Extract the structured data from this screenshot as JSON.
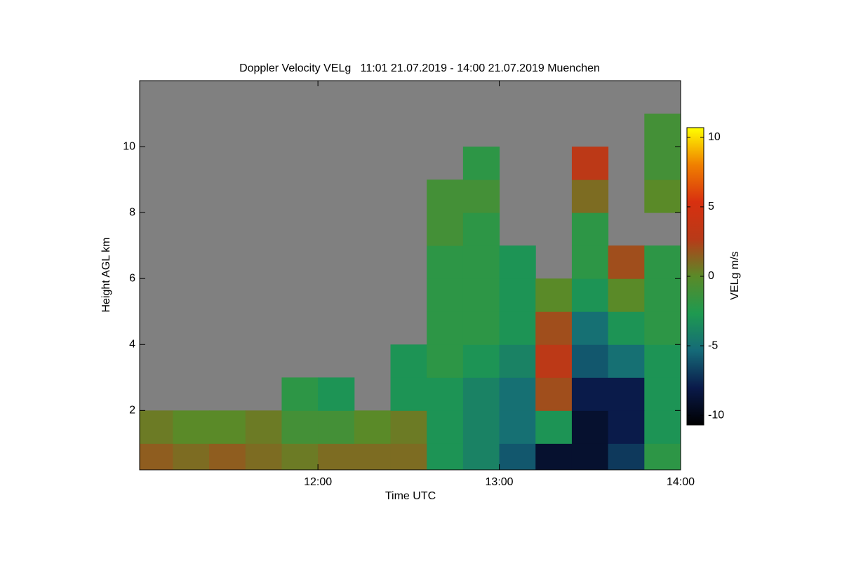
{
  "chart_data": {
    "type": "heatmap",
    "title": "Doppler Velocity VELg   11:01 21.07.2019 - 14:00 21.07.2019 Muenchen",
    "x_label": "Time UTC",
    "y_label": "Height AGL km",
    "colorbar_label": "VELg m/s",
    "xlim": [
      11.0167,
      14
    ],
    "xticks": [
      {
        "value": 12,
        "label": "12:00"
      },
      {
        "value": 13,
        "label": "13:00"
      },
      {
        "value": 14,
        "label": "14:00"
      }
    ],
    "ylim": [
      0.2,
      12
    ],
    "yticks": [
      2,
      4,
      6,
      8,
      10
    ],
    "zlim": [
      -10.7,
      10.7
    ],
    "zticks": [
      10,
      5,
      0,
      -5,
      -10
    ],
    "colors": [
      "#000000",
      "#0a1a4a",
      "#156a78",
      "#1e9a50",
      "#5a8a28",
      "#b83a18",
      "#d83010",
      "#f08000",
      "#ffff00"
    ],
    "background": "#808080",
    "x_bins": [
      11.0,
      11.2,
      11.4,
      11.6,
      11.8,
      12.0,
      12.2,
      12.4,
      12.6,
      12.8,
      13.0,
      13.2,
      13.4,
      13.6,
      13.8,
      14.0
    ],
    "y_bins": [
      0.2,
      1,
      2,
      3,
      4,
      5,
      6,
      7,
      8,
      9,
      10,
      11,
      12
    ],
    "z": [
      [
        1.5,
        1,
        1.5,
        1,
        0.5,
        1,
        1,
        1,
        -3,
        -4,
        -6,
        -9,
        -9,
        -7,
        -2
      ],
      [
        0.5,
        0,
        0,
        0.5,
        -1,
        -1,
        0,
        0.5,
        -3,
        -4,
        -5,
        -3,
        -9,
        -8,
        -3
      ],
      [
        null,
        null,
        null,
        null,
        -2,
        -3,
        null,
        -3,
        -3,
        -4,
        -5,
        2,
        -8,
        -8,
        -3
      ],
      [
        null,
        null,
        null,
        null,
        null,
        null,
        null,
        -3,
        -2,
        -3,
        -4,
        3,
        -6,
        -5,
        -3
      ],
      [
        null,
        null,
        null,
        null,
        null,
        null,
        null,
        null,
        -2,
        -2,
        -3,
        2,
        -5,
        -3,
        -2
      ],
      [
        null,
        null,
        null,
        null,
        null,
        null,
        null,
        null,
        -2,
        -2,
        -3,
        0,
        -3,
        0,
        -2
      ],
      [
        null,
        null,
        null,
        null,
        null,
        null,
        null,
        null,
        -2,
        -2,
        -3,
        null,
        -2,
        2,
        -2
      ],
      [
        null,
        null,
        null,
        null,
        null,
        null,
        null,
        null,
        -1,
        -2,
        null,
        null,
        -2,
        null,
        null
      ],
      [
        null,
        null,
        null,
        null,
        null,
        null,
        null,
        null,
        -1,
        -1,
        null,
        null,
        1,
        null,
        0
      ],
      [
        null,
        null,
        null,
        null,
        null,
        null,
        null,
        null,
        null,
        -2,
        null,
        null,
        3,
        null,
        -1
      ],
      [
        null,
        null,
        null,
        null,
        null,
        null,
        null,
        null,
        null,
        null,
        null,
        null,
        null,
        null,
        -1
      ],
      [
        null,
        null,
        null,
        null,
        null,
        null,
        null,
        null,
        null,
        null,
        null,
        null,
        null,
        null,
        null
      ]
    ]
  }
}
